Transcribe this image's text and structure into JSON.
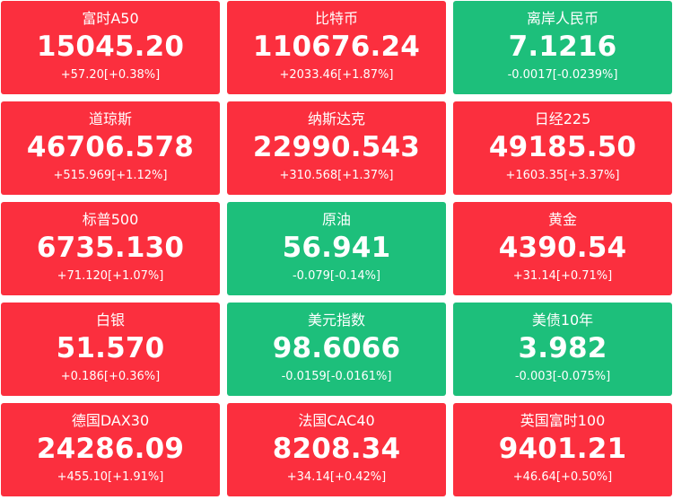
{
  "colors": {
    "up": "#fb2f3e",
    "down": "#1dbf7b",
    "text": "#ffffff"
  },
  "tiles": [
    {
      "name": "富时A50",
      "price": "15045.20",
      "change": "+57.20[+0.38%]",
      "direction": "up"
    },
    {
      "name": "比特币",
      "price": "110676.24",
      "change": "+2033.46[+1.87%]",
      "direction": "up"
    },
    {
      "name": "离岸人民币",
      "price": "7.1216",
      "change": "-0.0017[-0.0239%]",
      "direction": "down"
    },
    {
      "name": "道琼斯",
      "price": "46706.578",
      "change": "+515.969[+1.12%]",
      "direction": "up"
    },
    {
      "name": "纳斯达克",
      "price": "22990.543",
      "change": "+310.568[+1.37%]",
      "direction": "up"
    },
    {
      "name": "日经225",
      "price": "49185.50",
      "change": "+1603.35[+3.37%]",
      "direction": "up"
    },
    {
      "name": "标普500",
      "price": "6735.130",
      "change": "+71.120[+1.07%]",
      "direction": "up"
    },
    {
      "name": "原油",
      "price": "56.941",
      "change": "-0.079[-0.14%]",
      "direction": "down"
    },
    {
      "name": "黄金",
      "price": "4390.54",
      "change": "+31.14[+0.71%]",
      "direction": "up"
    },
    {
      "name": "白银",
      "price": "51.570",
      "change": "+0.186[+0.36%]",
      "direction": "up"
    },
    {
      "name": "美元指数",
      "price": "98.6066",
      "change": "-0.0159[-0.0161%]",
      "direction": "down"
    },
    {
      "name": "美债10年",
      "price": "3.982",
      "change": "-0.003[-0.075%]",
      "direction": "down"
    },
    {
      "name": "德国DAX30",
      "price": "24286.09",
      "change": "+455.10[+1.91%]",
      "direction": "up"
    },
    {
      "name": "法国CAC40",
      "price": "8208.34",
      "change": "+34.14[+0.42%]",
      "direction": "up"
    },
    {
      "name": "英国富时100",
      "price": "9401.21",
      "change": "+46.64[+0.50%]",
      "direction": "up"
    }
  ]
}
